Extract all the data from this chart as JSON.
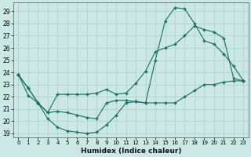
{
  "title": "",
  "xlabel": "Humidex (Indice chaleur)",
  "bg_color": "#cce8e4",
  "grid_color": "#aed4cf",
  "line_color": "#1a6b5e",
  "xlim": [
    -0.5,
    23.5
  ],
  "ylim": [
    18.7,
    29.7
  ],
  "xticks": [
    0,
    1,
    2,
    3,
    4,
    5,
    6,
    7,
    8,
    9,
    10,
    11,
    12,
    13,
    14,
    15,
    16,
    17,
    18,
    19,
    20,
    21,
    22,
    23
  ],
  "yticks": [
    19,
    20,
    21,
    22,
    23,
    24,
    25,
    26,
    27,
    28,
    29
  ],
  "line1_x": [
    0,
    1,
    2,
    3,
    4,
    5,
    6,
    7,
    8,
    9,
    10,
    11,
    12,
    13,
    14,
    15,
    16,
    17,
    18,
    19,
    20,
    21,
    22,
    23
  ],
  "line1_y": [
    23.8,
    22.7,
    21.5,
    20.7,
    20.8,
    20.7,
    20.5,
    20.3,
    20.2,
    21.5,
    21.7,
    21.7,
    21.6,
    21.5,
    25.0,
    28.2,
    29.3,
    29.2,
    28.0,
    26.6,
    26.3,
    25.5,
    24.5,
    23.3
  ],
  "line2_x": [
    0,
    1,
    2,
    3,
    4,
    5,
    6,
    7,
    8,
    9,
    10,
    11,
    12,
    13,
    14,
    15,
    16,
    17,
    18,
    19,
    20,
    21,
    22,
    23
  ],
  "line2_y": [
    23.8,
    22.7,
    21.5,
    20.7,
    22.2,
    22.2,
    22.2,
    22.2,
    22.3,
    22.6,
    22.2,
    22.3,
    23.1,
    24.1,
    25.7,
    26.0,
    26.3,
    27.0,
    27.8,
    27.5,
    27.3,
    26.8,
    23.5,
    23.3
  ],
  "line3_x": [
    0,
    1,
    2,
    3,
    4,
    5,
    6,
    7,
    8,
    9,
    10,
    11,
    12,
    13,
    14,
    15,
    16,
    17,
    18,
    19,
    20,
    21,
    22,
    23
  ],
  "line3_y": [
    23.8,
    22.1,
    21.5,
    20.2,
    19.5,
    19.2,
    19.1,
    19.0,
    19.1,
    19.7,
    20.5,
    21.5,
    21.6,
    21.5,
    21.5,
    21.5,
    21.5,
    22.0,
    22.5,
    23.0,
    23.0,
    23.2,
    23.3,
    23.3
  ]
}
